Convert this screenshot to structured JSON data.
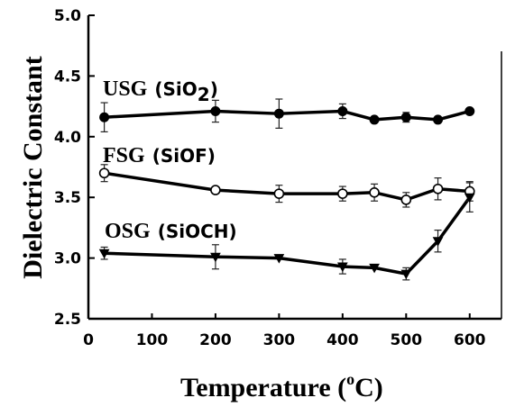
{
  "chart_data": {
    "type": "line",
    "xlabel": "Temperature (",
    "xlabel_sup": "o",
    "xlabel_unit": "C)",
    "ylabel": "Dielectric Constant",
    "xlim": [
      0,
      650
    ],
    "ylim": [
      2.5,
      5.0
    ],
    "x_ticks": [
      "0",
      "100",
      "200",
      "300",
      "400",
      "500",
      "600"
    ],
    "y_ticks": [
      "2.5",
      "3.0",
      "3.5",
      "4.0",
      "4.5",
      "5.0"
    ],
    "grid": false,
    "series": [
      {
        "name": "USG",
        "formula_main": "(SiO",
        "formula_sub": "2",
        "formula_end": ")",
        "marker": "filled-circle",
        "points": [
          {
            "x": 25,
            "y": 4.16,
            "err": 0.12
          },
          {
            "x": 200,
            "y": 4.21,
            "err": 0.09
          },
          {
            "x": 300,
            "y": 4.19,
            "err": 0.12
          },
          {
            "x": 400,
            "y": 4.21,
            "err": 0.06
          },
          {
            "x": 450,
            "y": 4.14,
            "err": 0
          },
          {
            "x": 500,
            "y": 4.16,
            "err": 0.04
          },
          {
            "x": 550,
            "y": 4.14,
            "err": 0
          },
          {
            "x": 600,
            "y": 4.21,
            "err": 0
          }
        ]
      },
      {
        "name": "FSG",
        "formula_main": "(SiOF)",
        "formula_sub": "",
        "formula_end": "",
        "marker": "open-circle",
        "points": [
          {
            "x": 25,
            "y": 3.7,
            "err": 0.07
          },
          {
            "x": 200,
            "y": 3.56,
            "err": 0
          },
          {
            "x": 300,
            "y": 3.53,
            "err": 0.07
          },
          {
            "x": 400,
            "y": 3.53,
            "err": 0.06
          },
          {
            "x": 450,
            "y": 3.54,
            "err": 0.07
          },
          {
            "x": 500,
            "y": 3.48,
            "err": 0.06
          },
          {
            "x": 550,
            "y": 3.57,
            "err": 0.09
          },
          {
            "x": 600,
            "y": 3.55,
            "err": 0.08
          }
        ]
      },
      {
        "name": "OSG",
        "formula_main": "(SiOCH)",
        "formula_sub": "",
        "formula_end": "",
        "marker": "filled-triangle",
        "points": [
          {
            "x": 25,
            "y": 3.04,
            "err": 0.05
          },
          {
            "x": 200,
            "y": 3.01,
            "err": 0.1
          },
          {
            "x": 300,
            "y": 3.0,
            "err": 0
          },
          {
            "x": 400,
            "y": 2.93,
            "err": 0.06
          },
          {
            "x": 450,
            "y": 2.92,
            "err": 0
          },
          {
            "x": 500,
            "y": 2.87,
            "err": 0.05
          },
          {
            "x": 550,
            "y": 3.14,
            "err": 0.09
          },
          {
            "x": 600,
            "y": 3.5,
            "err": 0.12
          }
        ]
      }
    ]
  }
}
